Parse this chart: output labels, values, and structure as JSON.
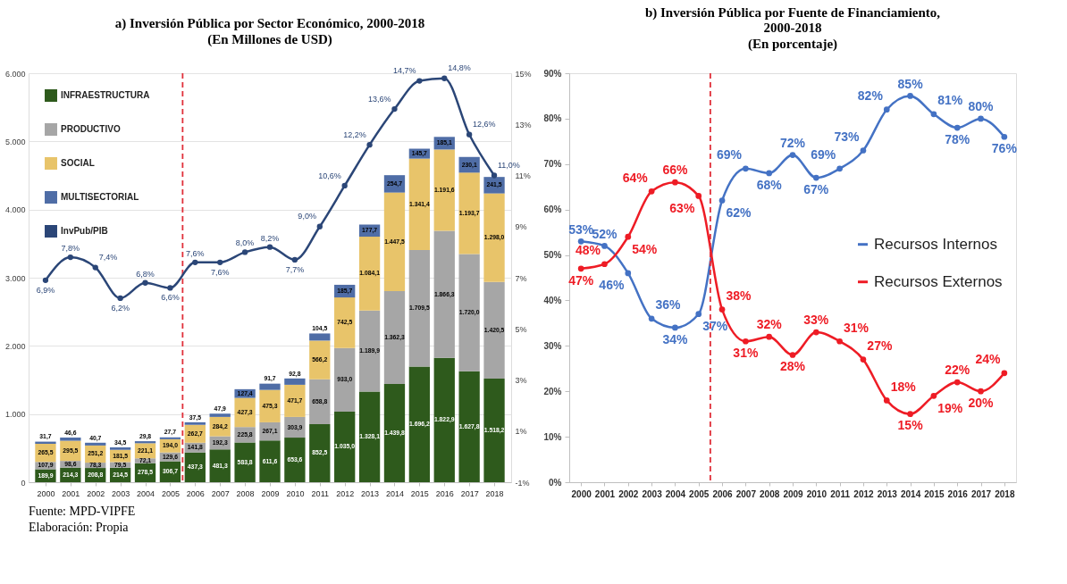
{
  "chart_data": [
    {
      "type": "bar",
      "stacked": true,
      "title": "a) Inversión Pública por Sector Económico, 2000-2018",
      "subtitle": "(En Millones de USD)",
      "x": [
        2000,
        2001,
        2002,
        2003,
        2004,
        2005,
        2006,
        2007,
        2008,
        2009,
        2010,
        2011,
        2012,
        2013,
        2014,
        2015,
        2016,
        2017,
        2018
      ],
      "xlim": [
        1999.5,
        2018.5
      ],
      "xticks": [
        2000,
        2001,
        2002,
        2003,
        2004,
        2005,
        2006,
        2007,
        2008,
        2009,
        2010,
        2011,
        2012,
        2013,
        2014,
        2015,
        2016,
        2017,
        2018
      ],
      "ylim": [
        0,
        6000
      ],
      "yticks": [
        0,
        {
          "value": 1000,
          "label": "1.000"
        },
        {
          "value": 2000,
          "label": "2.000"
        },
        {
          "value": 3000,
          "label": "3.000"
        },
        {
          "value": 4000,
          "label": "4.000"
        },
        {
          "value": 5000,
          "label": "5.000"
        },
        {
          "value": 6000,
          "label": "6.000"
        }
      ],
      "y2lim": [
        -1,
        15
      ],
      "y2ticks": [
        {
          "value": -1,
          "label": "-1%"
        },
        {
          "value": 1,
          "label": "1%"
        },
        {
          "value": 3,
          "label": "3%"
        },
        {
          "value": 5,
          "label": "5%"
        },
        {
          "value": 7,
          "label": "7%"
        },
        {
          "value": 9,
          "label": "9%"
        },
        {
          "value": 11,
          "label": "11%"
        },
        {
          "value": 13,
          "label": "13%"
        },
        {
          "value": 15,
          "label": "15%"
        }
      ],
      "grid": "y",
      "legend": "top left",
      "marker": "circle",
      "series": [
        {
          "name": "INFRAESTRUCTURA",
          "color": "#2e5a1c",
          "values": [
            189.9,
            214.3,
            208.8,
            214.5,
            278.5,
            306.7,
            437.3,
            481.3,
            583.8,
            611.6,
            653.6,
            852.5,
            1035.0,
            1328.1,
            1439.8,
            1696.2,
            1822.9,
            1627.8,
            1518.2
          ],
          "value_labels": [
            "189,9",
            "214,3",
            "208,8",
            "214,5",
            "278,5",
            "306,7",
            "437,3",
            "481,3",
            "583,8",
            "611,6",
            "653,6",
            "852,5",
            "1.035,0",
            "1.328,1",
            "1.439,8",
            "1.696,2",
            "1.822,9",
            "1.627,8",
            "1.518,2"
          ]
        },
        {
          "name": "PRODUCTIVO",
          "color": "#a6a6a6",
          "values": [
            107.9,
            98.6,
            78.3,
            79.5,
            72.1,
            129.6,
            141.8,
            192.3,
            225.8,
            267.1,
            303.9,
            658.8,
            933.0,
            1189.9,
            1362.3,
            1709.5,
            1866.3,
            1720.0,
            1420.5
          ],
          "value_labels": [
            "107,9",
            "98,6",
            "78,3",
            "79,5",
            "72,1",
            "129,6",
            "141,8",
            "192,3",
            "225,8",
            "267,1",
            "303,9",
            "658,8",
            "933,0",
            "1.189,9",
            "1.362,3",
            "1.709,5",
            "1.866,3",
            "1.720,0",
            "1.420,5"
          ]
        },
        {
          "name": "SOCIAL",
          "color": "#e8c46a",
          "values": [
            265.5,
            295.5,
            251.2,
            181.5,
            221.1,
            194.0,
            262.7,
            284.2,
            427.3,
            475.3,
            471.7,
            566.2,
            742.5,
            1084.1,
            1447.5,
            1341.4,
            1191.6,
            1193.7,
            1298.0
          ],
          "value_labels": [
            "265,5",
            "295,5",
            "251,2",
            "181,5",
            "221,1",
            "194,0",
            "262,7",
            "284,2",
            "427,3",
            "475,3",
            "471,7",
            "566,2",
            "742,5",
            "1.084,1",
            "1.447,5",
            "1.341,4",
            "1.191,6",
            "1.193,7",
            "1.298,0"
          ]
        },
        {
          "name": "MULTISECTORIAL",
          "color": "#4f6da6",
          "values": [
            31.7,
            46.6,
            40.7,
            34.5,
            29.8,
            27.7,
            37.5,
            47.9,
            127.4,
            91.7,
            92.8,
            104.5,
            185.7,
            177.7,
            254.7,
            145.7,
            185.1,
            230.1,
            241.5
          ],
          "value_labels": [
            "31,7",
            "46,6",
            "40,7",
            "34,5",
            "29,8",
            "27,7",
            "37,5",
            "47,9",
            "127,4",
            "91,7",
            "92,8",
            "104,5",
            "185,7",
            "177,7",
            "254,7",
            "145,7",
            "185,1",
            "230,1",
            "241,5"
          ]
        },
        {
          "name": "InvPub/PIB",
          "type": "line",
          "axis": "y2",
          "color": "#2b4677",
          "values": [
            6.9,
            7.8,
            7.4,
            6.2,
            6.8,
            6.6,
            7.6,
            7.6,
            8.0,
            8.2,
            7.7,
            9.0,
            10.6,
            12.2,
            13.6,
            14.7,
            14.8,
            12.6,
            11.0
          ],
          "value_labels": [
            "6,9%",
            "7,8%",
            "7,4%",
            "6,2%",
            "6,8%",
            "6,6%",
            "7,6%",
            "7,6%",
            "8,0%",
            "8,2%",
            "7,7%",
            "9,0%",
            "10,6%",
            "12,2%",
            "13,6%",
            "14,7%",
            "14,8%",
            "12,6%",
            "11,0%"
          ]
        }
      ],
      "ref_lines": [
        {
          "axis": "x",
          "value": 2005.5,
          "color": "#e0303a",
          "line_style": "dashed"
        }
      ],
      "annotations": [
        "Fuente: MPD-VIPFE",
        "Elaboración: Propia"
      ]
    },
    {
      "type": "line",
      "title": "b) Inversión Pública por Fuente de Financiamiento, 2000-2018",
      "subtitle": "(En porcentaje)",
      "x": [
        2000,
        2001,
        2002,
        2003,
        2004,
        2005,
        2006,
        2007,
        2008,
        2009,
        2010,
        2011,
        2012,
        2013,
        2014,
        2015,
        2016,
        2017,
        2018
      ],
      "xlim": [
        1999.5,
        2018.5
      ],
      "xticks": [
        2000,
        2001,
        2002,
        2003,
        2004,
        2005,
        2006,
        2007,
        2008,
        2009,
        2010,
        2011,
        2012,
        2013,
        2014,
        2015,
        2016,
        2017,
        2018
      ],
      "ylim": [
        0,
        90
      ],
      "yticks": [
        {
          "value": 0,
          "label": "0%"
        },
        {
          "value": 10,
          "label": "10%"
        },
        {
          "value": 20,
          "label": "20%"
        },
        {
          "value": 30,
          "label": "30%"
        },
        {
          "value": 40,
          "label": "40%"
        },
        {
          "value": 50,
          "label": "50%"
        },
        {
          "value": 60,
          "label": "60%"
        },
        {
          "value": 70,
          "label": "70%"
        },
        {
          "value": 80,
          "label": "80%"
        },
        {
          "value": 90,
          "label": "90%"
        }
      ],
      "grid": false,
      "legend": "right",
      "marker": "circle",
      "series": [
        {
          "name": "Recursos Internos",
          "color": "#4472c4",
          "values": [
            53,
            52,
            46,
            36,
            34,
            37,
            62,
            69,
            68,
            72,
            67,
            69,
            73,
            82,
            85,
            81,
            78,
            80,
            76
          ],
          "value_labels": [
            "53%",
            "52%",
            "46%",
            "36%",
            "34%",
            "37%",
            "62%",
            "69%",
            "68%",
            "72%",
            "67%",
            "69%",
            "73%",
            "82%",
            "85%",
            "81%",
            "78%",
            "80%",
            "76%"
          ]
        },
        {
          "name": "Recursos Externos",
          "color": "#ee1c25",
          "values": [
            47,
            48,
            54,
            64,
            66,
            63,
            38,
            31,
            32,
            28,
            33,
            31,
            27,
            18,
            15,
            19,
            22,
            20,
            24
          ],
          "value_labels": [
            "47%",
            "48%",
            "54%",
            "64%",
            "66%",
            "63%",
            "38%",
            "31%",
            "32%",
            "28%",
            "33%",
            "31%",
            "27%",
            "18%",
            "15%",
            "19%",
            "22%",
            "20%",
            "24%"
          ]
        }
      ],
      "ref_lines": [
        {
          "axis": "x",
          "value": 2005.5,
          "color": "#e0303a",
          "line_style": "dashed"
        }
      ]
    }
  ]
}
